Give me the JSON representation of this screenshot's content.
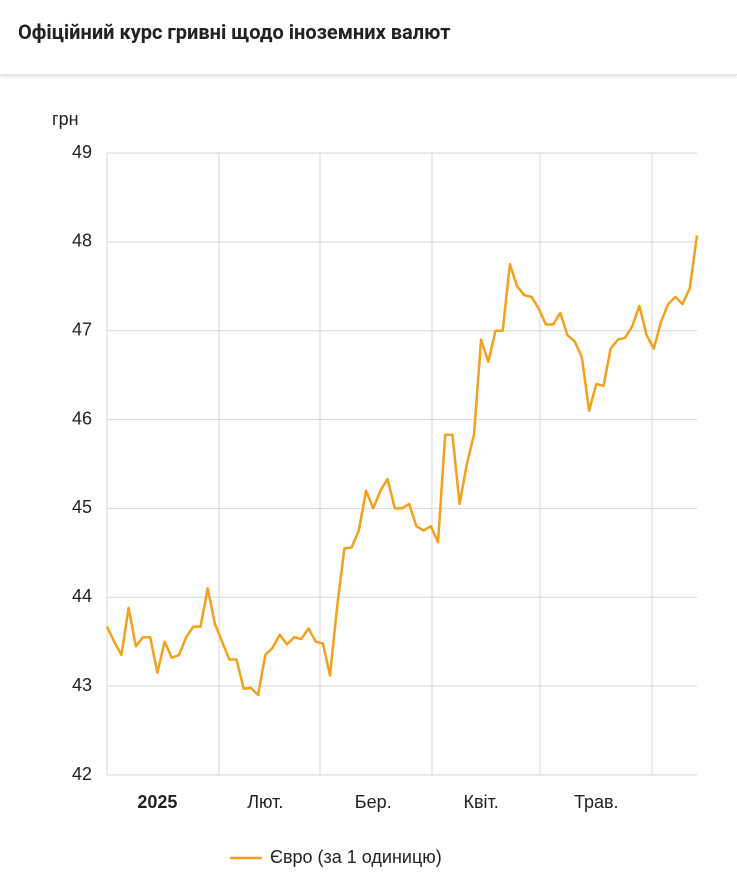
{
  "chart_data": {
    "type": "line",
    "title": "Офіційний курс гривні щодо іноземних валют",
    "y_label": "грн",
    "categories": [
      null,
      null,
      null,
      null,
      null,
      null,
      null,
      "2025",
      null,
      null,
      null,
      null,
      null,
      null,
      null,
      null,
      null,
      null,
      null,
      null,
      null,
      null,
      "Лют.",
      null,
      null,
      null,
      null,
      null,
      null,
      null,
      null,
      null,
      null,
      null,
      null,
      null,
      null,
      "Бер.",
      null,
      null,
      null,
      null,
      null,
      null,
      null,
      null,
      null,
      null,
      null,
      null,
      null,
      null,
      "Квіт.",
      null,
      null,
      null,
      null,
      null,
      null,
      null,
      null,
      null,
      null,
      null,
      null,
      null,
      null,
      null,
      "Трав.",
      null,
      null,
      null,
      null,
      null,
      null,
      null,
      null,
      null,
      null,
      null,
      null,
      null,
      null
    ],
    "series": [
      {
        "name": "Євро (за 1 одиницю)",
        "color": "#f4a11c",
        "values": [
          43.67,
          43.5,
          43.35,
          43.88,
          43.45,
          43.55,
          43.55,
          43.15,
          43.5,
          43.32,
          43.35,
          43.55,
          43.67,
          43.67,
          44.1,
          43.7,
          43.5,
          43.3,
          43.3,
          42.97,
          42.98,
          42.9,
          43.35,
          43.43,
          43.58,
          43.47,
          43.55,
          43.53,
          43.65,
          43.5,
          43.48,
          43.12,
          43.9,
          44.55,
          44.56,
          44.75,
          45.2,
          45.0,
          45.2,
          45.33,
          45.0,
          45.0,
          45.05,
          44.8,
          44.75,
          44.8,
          44.62,
          45.83,
          45.83,
          45.05,
          45.5,
          45.83,
          46.9,
          46.65,
          47.0,
          47.0,
          47.75,
          47.5,
          47.4,
          47.38,
          47.25,
          47.07,
          47.07,
          47.2,
          46.95,
          46.88,
          46.7,
          46.1,
          46.4,
          46.38,
          46.8,
          46.9,
          46.92,
          47.05,
          47.28,
          46.95,
          46.8,
          47.1,
          47.3,
          47.38,
          47.3,
          47.48,
          48.07
        ]
      }
    ],
    "ylim": [
      42,
      49
    ],
    "yticks": [
      42,
      43,
      44,
      45,
      46,
      47,
      48,
      49
    ],
    "grid": true,
    "legend": "bottom"
  }
}
